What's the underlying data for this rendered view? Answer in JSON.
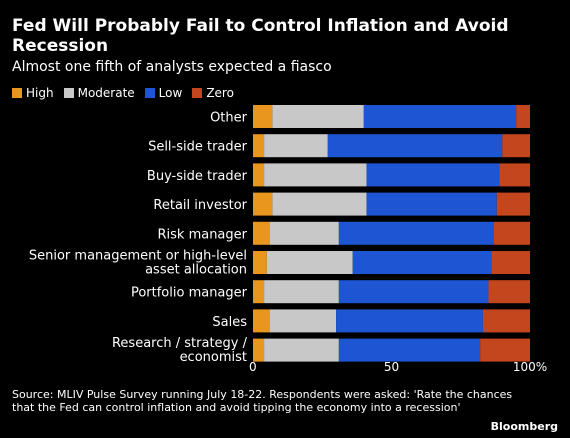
{
  "title": "Fed Will Probably Fail to Control Inflation and Avoid Recession",
  "subtitle": "Almost one fifth of analysts expected a fiasco",
  "source": "Source: MLIV Pulse Survey running July 18-22. Respondents were asked: 'Rate the chances that the Fed can control inflation and avoid tipping the economy into a recession'",
  "brand": "Bloomberg",
  "chart_data": {
    "type": "bar",
    "orientation": "horizontal",
    "stacked": true,
    "categories": [
      "Other",
      "Sell-side trader",
      "Buy-side trader",
      "Retail investor",
      "Risk manager",
      "Senior management or high-level asset allocation",
      "Portfolio manager",
      "Sales",
      "Research / strategy / economist"
    ],
    "series": [
      {
        "name": "High",
        "color": "#e8961e",
        "values": [
          7,
          4,
          4,
          7,
          6,
          5,
          4,
          6,
          4
        ]
      },
      {
        "name": "Moderate",
        "color": "#c8c8c8",
        "values": [
          33,
          23,
          37,
          34,
          25,
          31,
          27,
          24,
          27
        ]
      },
      {
        "name": "Low",
        "color": "#1e55d2",
        "values": [
          55,
          63,
          48,
          47,
          56,
          50,
          54,
          53,
          51
        ]
      },
      {
        "name": "Zero",
        "color": "#c4461e",
        "values": [
          5,
          10,
          11,
          12,
          13,
          14,
          15,
          17,
          18
        ]
      }
    ],
    "xlim": [
      0,
      100
    ],
    "xticks": [
      "0",
      "50",
      "100%"
    ],
    "legend_position": "top-left"
  }
}
